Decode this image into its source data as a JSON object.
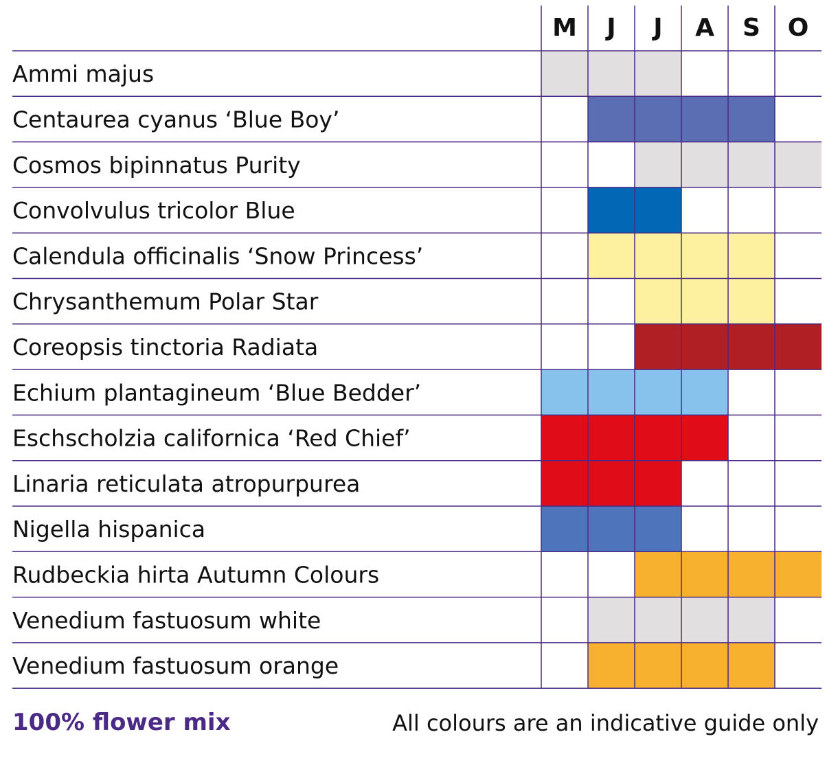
{
  "chart_data": {
    "type": "table",
    "months": [
      "M",
      "J",
      "J",
      "A",
      "S",
      "O"
    ],
    "rows": [
      {
        "name": "Ammi majus",
        "color": "#e2dfe0",
        "start": 0,
        "end": 2
      },
      {
        "name": "Centaurea cyanus ‘Blue Boy’",
        "color": "#5b6eb4",
        "start": 1,
        "end": 4
      },
      {
        "name": "Cosmos bipinnatus Purity",
        "color": "#e2dfe0",
        "start": 2,
        "end": 5
      },
      {
        "name": "Convolvulus tricolor Blue",
        "color": "#0268b6",
        "start": 1,
        "end": 2
      },
      {
        "name": "Calendula officinalis ‘Snow Princess’",
        "color": "#fdf09e",
        "start": 1,
        "end": 4
      },
      {
        "name": "Chrysanthemum Polar Star",
        "color": "#fdf09e",
        "start": 2,
        "end": 4
      },
      {
        "name": "Coreopsis tinctoria Radiata",
        "color": "#b01f24",
        "start": 2,
        "end": 5
      },
      {
        "name": "Echium plantagineum ‘Blue Bedder’",
        "color": "#86c2eb",
        "start": 0,
        "end": 3
      },
      {
        "name": "Eschscholzia californica ‘Red Chief’",
        "color": "#e00d18",
        "start": 0,
        "end": 3
      },
      {
        "name": "Linaria reticulata atropurpurea",
        "color": "#e00d18",
        "start": 0,
        "end": 2
      },
      {
        "name": "Nigella hispanica",
        "color": "#4e74bc",
        "start": 0,
        "end": 2
      },
      {
        "name": "Rudbeckia hirta Autumn Colours",
        "color": "#f7b12e",
        "start": 2,
        "end": 5
      },
      {
        "name": "Venedium fastuosum white",
        "color": "#e2dfe0",
        "start": 1,
        "end": 4
      },
      {
        "name": "Venedium fastuosum orange",
        "color": "#f7b12e",
        "start": 1,
        "end": 4
      }
    ],
    "grid_color": "#4b2a86"
  },
  "footer": {
    "left": "100% flower mix",
    "right": "All colours are an indicative guide only"
  }
}
